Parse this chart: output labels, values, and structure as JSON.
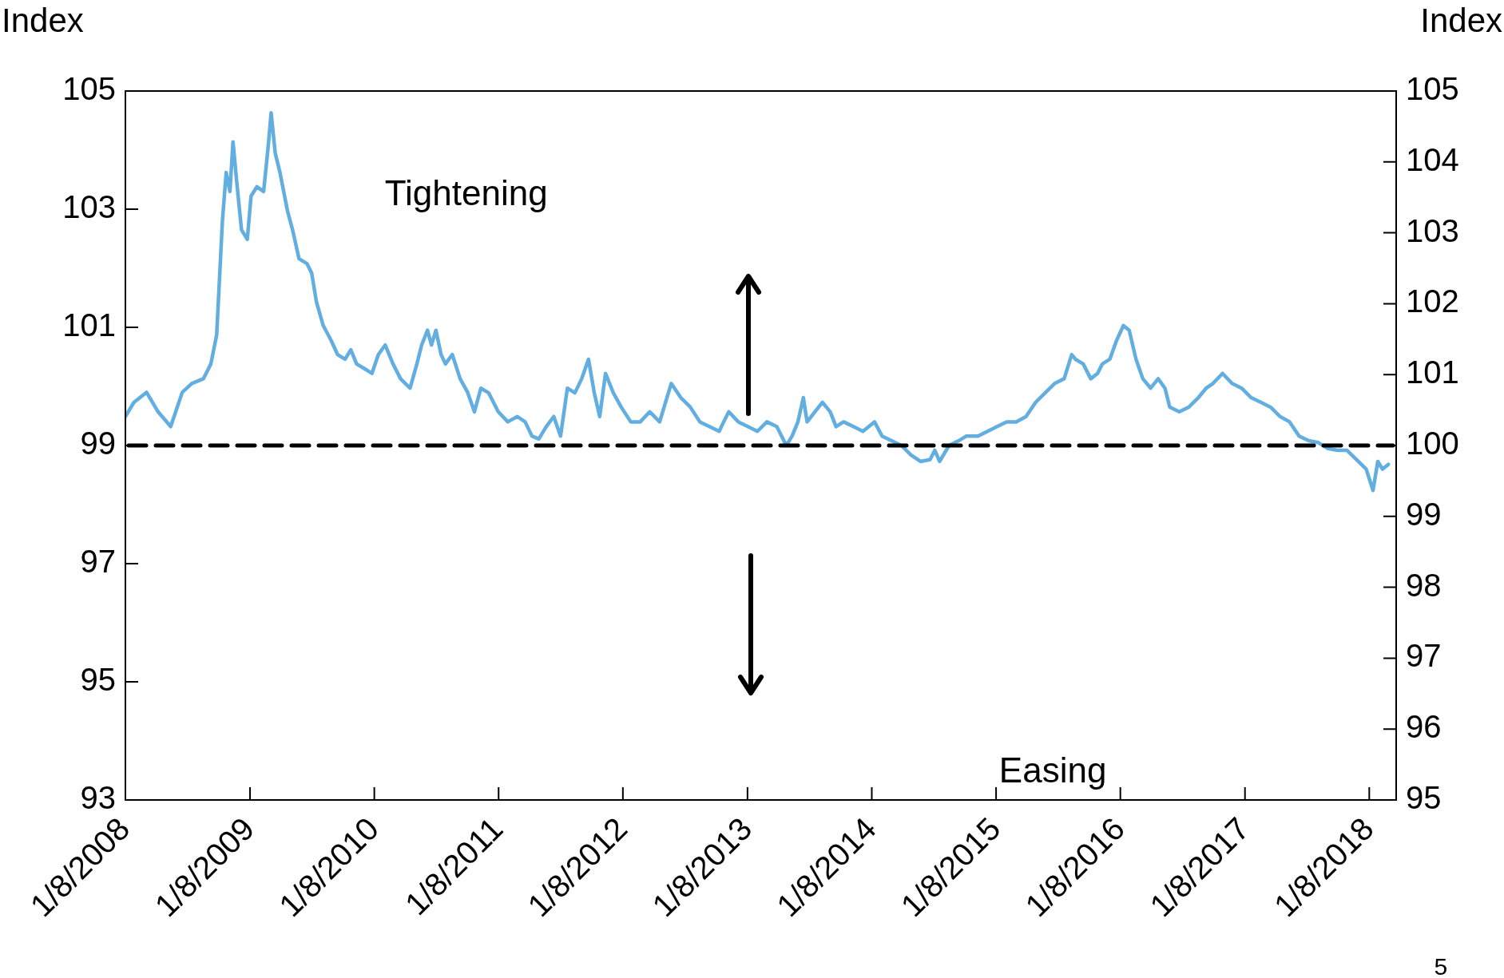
{
  "chart_data": {
    "type": "line",
    "ylabel": "Index",
    "y2label": "Index",
    "annotations": [
      "Tightening",
      "Easing",
      "5"
    ],
    "x": [
      "2008-01-08",
      "2008-02-02",
      "2008-03-10",
      "2008-04-13",
      "2008-05-20",
      "2008-06-23",
      "2008-07-21",
      "2008-08-24",
      "2008-09-15",
      "2008-10-02",
      "2008-10-19",
      "2008-10-30",
      "2008-11-10",
      "2008-11-19",
      "2008-11-30",
      "2008-12-14",
      "2008-12-31",
      "2009-01-11",
      "2009-01-28",
      "2009-02-17",
      "2009-03-03",
      "2009-03-11",
      "2009-03-23",
      "2009-04-06",
      "2009-04-28",
      "2009-05-13",
      "2009-06-01",
      "2009-06-24",
      "2009-07-08",
      "2009-07-22",
      "2009-08-11",
      "2009-09-03",
      "2009-09-22",
      "2009-10-14",
      "2009-10-31",
      "2009-11-17",
      "2009-12-10",
      "2010-01-01",
      "2010-01-20",
      "2010-02-09",
      "2010-03-04",
      "2010-03-26",
      "2010-04-23",
      "2010-05-13",
      "2010-05-27",
      "2010-06-13",
      "2010-06-25",
      "2010-07-08",
      "2010-07-23",
      "2010-08-05",
      "2010-08-25",
      "2010-09-17",
      "2010-10-09",
      "2010-10-29",
      "2010-11-17",
      "2010-12-10",
      "2011-01-07",
      "2011-02-04",
      "2011-03-04",
      "2011-03-27",
      "2011-04-16",
      "2011-05-06",
      "2011-05-28",
      "2011-06-19",
      "2011-07-09",
      "2011-07-29",
      "2011-08-20",
      "2011-09-09",
      "2011-09-29",
      "2011-10-16",
      "2011-11-01",
      "2011-11-18",
      "2011-12-11",
      "2012-01-03",
      "2012-01-31",
      "2012-02-28",
      "2012-03-27",
      "2012-04-25",
      "2012-05-29",
      "2012-06-26",
      "2012-07-24",
      "2012-08-21",
      "2012-09-18",
      "2012-10-17",
      "2012-10-30",
      "2012-11-14",
      "2012-12-12",
      "2013-01-09",
      "2013-02-06",
      "2013-03-06",
      "2013-04-04",
      "2013-05-02",
      "2013-05-19",
      "2013-06-05",
      "2013-06-21",
      "2013-07-02",
      "2013-07-25",
      "2013-08-16",
      "2013-09-08",
      "2013-09-25",
      "2013-10-17",
      "2013-11-15",
      "2013-12-13",
      "2014-01-16",
      "2014-02-07",
      "2014-03-07",
      "2014-04-05",
      "2014-05-03",
      "2014-05-31",
      "2014-06-28",
      "2014-07-12",
      "2014-07-26",
      "2014-08-23",
      "2014-09-20",
      "2014-10-13",
      "2014-11-16",
      "2014-12-14",
      "2015-01-11",
      "2015-02-08",
      "2015-03-08",
      "2015-04-06",
      "2015-05-04",
      "2015-06-01",
      "2015-06-29",
      "2015-07-27",
      "2015-08-18",
      "2015-08-29",
      "2015-09-21",
      "2015-10-13",
      "2015-11-02",
      "2015-11-16",
      "2015-12-08",
      "2015-12-28",
      "2016-01-17",
      "2016-02-03",
      "2016-02-23",
      "2016-03-14",
      "2016-04-06",
      "2016-04-28",
      "2016-05-18",
      "2016-06-01",
      "2016-06-29",
      "2016-07-27",
      "2016-08-24",
      "2016-09-16",
      "2016-10-06",
      "2016-11-03",
      "2016-12-01",
      "2016-12-29",
      "2017-01-26",
      "2017-02-24",
      "2017-03-24",
      "2017-04-21",
      "2017-05-19",
      "2017-06-16",
      "2017-07-14",
      "2017-08-11",
      "2017-09-08",
      "2017-10-06",
      "2017-11-03",
      "2017-12-02",
      "2017-12-30",
      "2018-01-19",
      "2018-02-02",
      "2018-02-16",
      "2018-03-05"
    ],
    "series": [
      {
        "color": "#62aee0",
        "values": [
          99.49,
          99.73,
          99.9,
          99.57,
          99.32,
          99.9,
          100.05,
          100.13,
          100.38,
          100.87,
          102.81,
          103.62,
          103.3,
          104.14,
          103.46,
          102.65,
          102.49,
          103.22,
          103.38,
          103.3,
          104.1,
          104.63,
          103.95,
          103.62,
          102.97,
          102.65,
          102.16,
          102.08,
          101.92,
          101.43,
          101.03,
          100.78,
          100.54,
          100.46,
          100.62,
          100.38,
          100.3,
          100.22,
          100.54,
          100.7,
          100.38,
          100.13,
          99.97,
          100.38,
          100.7,
          100.95,
          100.7,
          100.95,
          100.54,
          100.38,
          100.54,
          100.13,
          99.9,
          99.57,
          99.97,
          99.89,
          99.57,
          99.4,
          99.49,
          99.4,
          99.16,
          99.11,
          99.32,
          99.49,
          99.16,
          99.97,
          99.89,
          100.13,
          100.46,
          99.89,
          99.49,
          100.22,
          99.89,
          99.65,
          99.4,
          99.4,
          99.57,
          99.4,
          100.05,
          99.81,
          99.65,
          99.4,
          99.32,
          99.24,
          99.4,
          99.57,
          99.4,
          99.32,
          99.24,
          99.4,
          99.32,
          99.0,
          99.16,
          99.4,
          99.81,
          99.4,
          99.57,
          99.73,
          99.57,
          99.32,
          99.4,
          99.32,
          99.24,
          99.4,
          99.16,
          99.08,
          99.0,
          98.84,
          98.73,
          98.76,
          98.92,
          98.73,
          99.0,
          99.08,
          99.16,
          99.16,
          99.24,
          99.32,
          99.4,
          99.4,
          99.49,
          99.73,
          99.89,
          100.05,
          100.13,
          100.54,
          100.46,
          100.38,
          100.13,
          100.22,
          100.38,
          100.46,
          100.78,
          101.03,
          100.95,
          100.46,
          100.13,
          99.97,
          100.13,
          99.97,
          99.65,
          99.57,
          99.65,
          99.81,
          99.97,
          100.05,
          100.22,
          100.05,
          99.97,
          99.81,
          99.73,
          99.65,
          99.49,
          99.4,
          99.16,
          99.08,
          99.05,
          98.95,
          98.92,
          98.92,
          98.76,
          98.6,
          98.24,
          98.73,
          98.6,
          98.68
        ]
      }
    ],
    "xlim": [
      "2008-01-08",
      "2018-03-28"
    ],
    "xticks": [
      {
        "value": "2008-01-08",
        "label": "1/8/2008"
      },
      {
        "value": "2009-01-08",
        "label": "1/8/2009"
      },
      {
        "value": "2010-01-08",
        "label": "1/8/2010"
      },
      {
        "value": "2011-01-08",
        "label": "1/8/2011"
      },
      {
        "value": "2012-01-08",
        "label": "1/8/2012"
      },
      {
        "value": "2013-01-08",
        "label": "1/8/2013"
      },
      {
        "value": "2014-01-08",
        "label": "1/8/2014"
      },
      {
        "value": "2015-01-08",
        "label": "1/8/2015"
      },
      {
        "value": "2016-01-08",
        "label": "1/8/2016"
      },
      {
        "value": "2017-01-08",
        "label": "1/8/2017"
      },
      {
        "value": "2018-01-08",
        "label": "1/8/2018"
      }
    ],
    "ylim": [
      93,
      105
    ],
    "yticks": [
      93,
      95,
      97,
      99,
      101,
      103,
      105
    ],
    "y2lim": [
      95,
      105
    ],
    "y2ticks": [
      95,
      96,
      97,
      98,
      99,
      100,
      101,
      102,
      103,
      104,
      105
    ],
    "ref_lines": [
      {
        "axis": "y",
        "value": 99,
        "color": "#000000",
        "line_style": "dashed"
      }
    ],
    "grid": false,
    "legend": false,
    "marker": "none",
    "line_style": "solid"
  }
}
